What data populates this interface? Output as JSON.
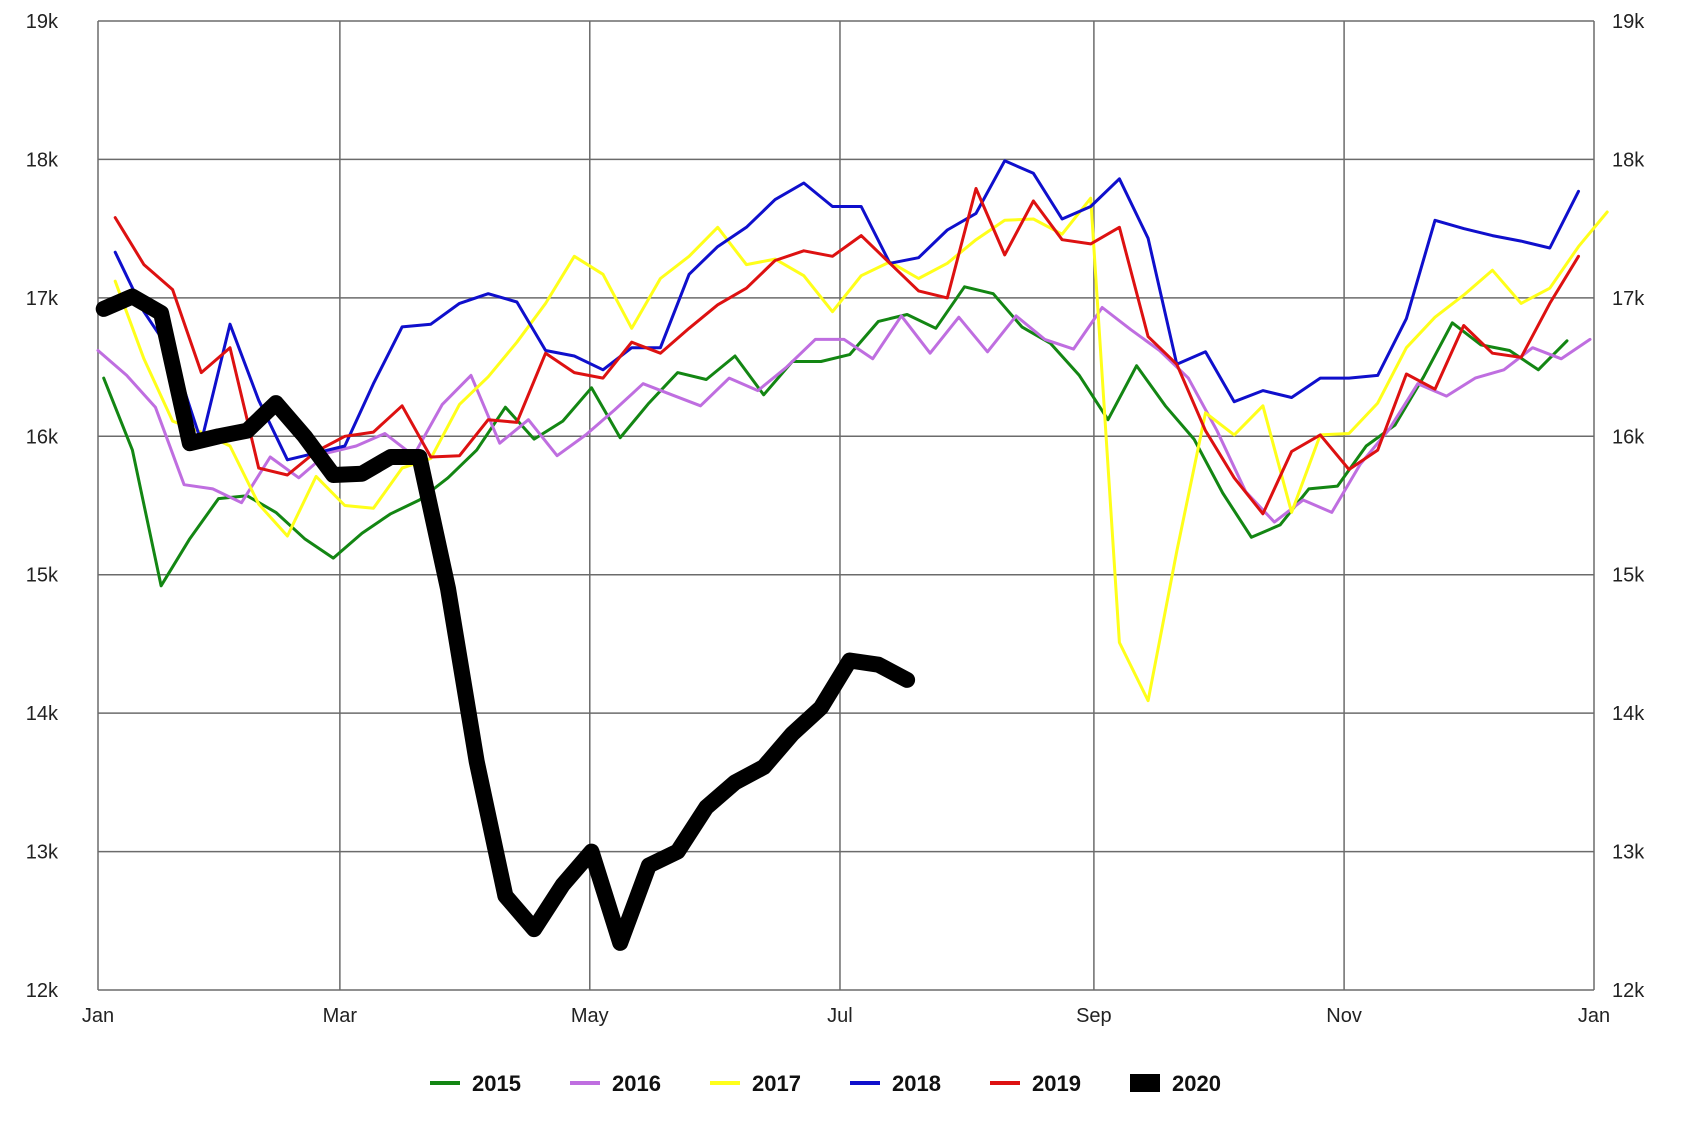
{
  "chart_data": {
    "type": "line",
    "title": "",
    "xlabel": "",
    "ylabel": "",
    "x_axis": {
      "ticks": [
        {
          "label": "Jan",
          "week": 0
        },
        {
          "label": "Mar",
          "week": 8.43
        },
        {
          "label": "May",
          "week": 17.14
        },
        {
          "label": "Jul",
          "week": 25.86
        },
        {
          "label": "Sep",
          "week": 34.71
        },
        {
          "label": "Nov",
          "week": 43.43
        },
        {
          "label": "Jan",
          "week": 52.14
        }
      ],
      "range": [
        0,
        52.14
      ]
    },
    "y_axis": {
      "ticks": [
        {
          "label": "12k",
          "value": 12000
        },
        {
          "label": "13k",
          "value": 13000
        },
        {
          "label": "14k",
          "value": 14000
        },
        {
          "label": "15k",
          "value": 15000
        },
        {
          "label": "16k",
          "value": 16000
        },
        {
          "label": "17k",
          "value": 17000
        },
        {
          "label": "18k",
          "value": 18000
        },
        {
          "label": "19k",
          "value": 19000
        }
      ],
      "range": [
        12000,
        19000
      ],
      "shown_on": "left-and-right"
    },
    "grid": true,
    "legend_position": "bottom",
    "series": [
      {
        "name": "2015",
        "color": "#138613",
        "width": 3,
        "start_week": 0.2,
        "values": [
          16420,
          15900,
          14920,
          15260,
          15550,
          15570,
          15450,
          15260,
          15120,
          15300,
          15440,
          15540,
          15700,
          15900,
          16210,
          15980,
          16110,
          16350,
          15990,
          16240,
          16460,
          16410,
          16580,
          16300,
          16540,
          16540,
          16590,
          16830,
          16880,
          16780,
          17080,
          17030,
          16790,
          16670,
          16440,
          16120,
          16510,
          16220,
          15980,
          15590,
          15270,
          15360,
          15620,
          15640,
          15930,
          16080,
          16430,
          16820,
          16660,
          16620,
          16480,
          16690
        ]
      },
      {
        "name": "2016",
        "color": "#bf6ee0",
        "width": 3,
        "start_week": 0,
        "values": [
          16620,
          16440,
          16210,
          15650,
          15620,
          15520,
          15850,
          15700,
          15880,
          15930,
          16020,
          15860,
          16230,
          16440,
          15950,
          16120,
          15860,
          16010,
          16190,
          16380,
          16300,
          16220,
          16420,
          16330,
          16500,
          16700,
          16700,
          16560,
          16870,
          16600,
          16860,
          16610,
          16870,
          16700,
          16630,
          16930,
          16770,
          16620,
          16420,
          16040,
          15600,
          15380,
          15540,
          15450,
          15800,
          16050,
          16380,
          16290,
          16420,
          16480,
          16640,
          16560,
          16700
        ]
      },
      {
        "name": "2017",
        "color": "#ffff1a",
        "width": 3,
        "start_week": 0.6,
        "values": [
          17120,
          16560,
          16110,
          16030,
          15930,
          15510,
          15280,
          15710,
          15500,
          15480,
          15770,
          15840,
          16230,
          16430,
          16680,
          16960,
          17300,
          17170,
          16780,
          17140,
          17300,
          17510,
          17240,
          17280,
          17160,
          16900,
          17160,
          17260,
          17140,
          17250,
          17420,
          17560,
          17570,
          17460,
          17720,
          14510,
          14090,
          15170,
          16170,
          16010,
          16220,
          15450,
          16010,
          16020,
          16240,
          16640,
          16860,
          17020,
          17200,
          16960,
          17070,
          17370,
          17620
        ]
      },
      {
        "name": "2018",
        "color": "#0f0fcc",
        "width": 3,
        "start_week": 0.6,
        "values": [
          17330,
          16900,
          16590,
          15960,
          16810,
          16260,
          15830,
          15880,
          15930,
          16380,
          16790,
          16810,
          16960,
          17030,
          16970,
          16620,
          16580,
          16480,
          16640,
          16640,
          17170,
          17370,
          17510,
          17710,
          17830,
          17660,
          17660,
          17250,
          17290,
          17490,
          17610,
          17990,
          17900,
          17570,
          17660,
          17860,
          17430,
          16520,
          16610,
          16250,
          16330,
          16280,
          16420,
          16420,
          16440,
          16850,
          17560,
          17500,
          17450,
          17410,
          17360,
          17770
        ]
      },
      {
        "name": "2019",
        "color": "#dd1111",
        "width": 3,
        "start_week": 0.6,
        "values": [
          17580,
          17240,
          17060,
          16460,
          16640,
          15770,
          15720,
          15890,
          16000,
          16030,
          16220,
          15850,
          15860,
          16120,
          16100,
          16600,
          16460,
          16420,
          16680,
          16600,
          16780,
          16950,
          17070,
          17270,
          17340,
          17300,
          17450,
          17250,
          17050,
          17000,
          17790,
          17310,
          17700,
          17420,
          17390,
          17510,
          16720,
          16520,
          16040,
          15700,
          15440,
          15890,
          16010,
          15760,
          15900,
          16450,
          16340,
          16800,
          16600,
          16570,
          16960,
          17300
        ]
      },
      {
        "name": "2020",
        "color": "#000000",
        "width": 16,
        "start_week": 0.2,
        "values": [
          16920,
          17010,
          16890,
          15950,
          16000,
          16040,
          16240,
          16000,
          15720,
          15730,
          15850,
          15850,
          14900,
          13650,
          12680,
          12440,
          12760,
          13000,
          12340,
          12900,
          13000,
          13320,
          13500,
          13610,
          13850,
          14040,
          14380,
          14350,
          14240
        ]
      }
    ]
  },
  "legend": [
    {
      "label": "2015",
      "color": "#138613"
    },
    {
      "label": "2016",
      "color": "#bf6ee0"
    },
    {
      "label": "2017",
      "color": "#ffff1a"
    },
    {
      "label": "2018",
      "color": "#0f0fcc"
    },
    {
      "label": "2019",
      "color": "#dd1111"
    },
    {
      "label": "2020",
      "color": "#000000"
    }
  ]
}
